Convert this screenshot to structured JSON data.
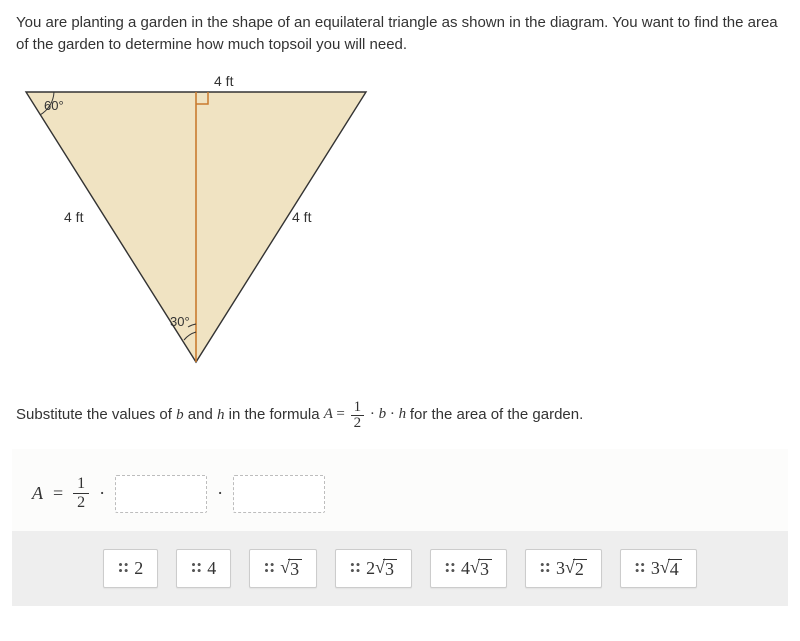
{
  "question": {
    "text": "You are planting a garden in the shape of an equilateral triangle as shown in the diagram. You want to find the area of the garden to determine how much topsoil you will need."
  },
  "diagram": {
    "top_label": "4 ft",
    "left_side_label": "4 ft",
    "right_side_label": "4 ft",
    "top_left_angle": "60°",
    "bottom_angle": "30°",
    "colors": {
      "fill": "#f0e3c2",
      "stroke": "#333333",
      "altitude": "#c97b2e",
      "text": "#333333"
    }
  },
  "instruction": {
    "prefix": "Substitute the values of ",
    "var_b": "b",
    "mid1": " and ",
    "var_h": "h",
    "mid2": " in the formula ",
    "formula_lhs": "A",
    "equals": " = ",
    "frac_num": "1",
    "frac_den": "2",
    "formula_rhs_dot1": " · ",
    "formula_rhs_b": "b",
    "formula_rhs_dot2": " · ",
    "formula_rhs_h": "h",
    "suffix": " for the area of the garden."
  },
  "equation": {
    "A": "A",
    "eq": "=",
    "frac_num": "1",
    "frac_den": "2",
    "dot": "·"
  },
  "tiles": [
    {
      "type": "plain",
      "text": "2"
    },
    {
      "type": "plain",
      "text": "4"
    },
    {
      "type": "sqrt",
      "coef": "",
      "arg": "3"
    },
    {
      "type": "sqrt",
      "coef": "2",
      "arg": "3"
    },
    {
      "type": "sqrt",
      "coef": "4",
      "arg": "3"
    },
    {
      "type": "sqrt",
      "coef": "3",
      "arg": "2"
    },
    {
      "type": "sqrt",
      "coef": "3",
      "arg": "4"
    }
  ]
}
